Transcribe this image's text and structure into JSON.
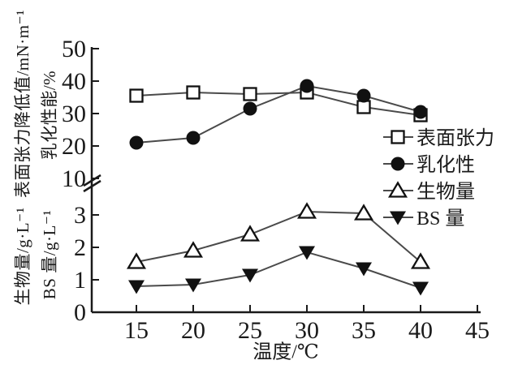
{
  "figure": {
    "xlabel": "温度/℃",
    "ylabel_top_outer": "表面张力降低值/mN·m⁻¹",
    "ylabel_top_inner": "乳化性能/%",
    "ylabel_bottom_outer": "生物量/g·L⁻¹",
    "ylabel_bottom_inner": "BS 量/g·L⁻¹"
  },
  "chart_data": {
    "type": "line",
    "x": [
      15,
      20,
      25,
      30,
      35,
      40
    ],
    "xlabel": "温度/℃",
    "xticks": [
      "15",
      "20",
      "25",
      "30",
      "35",
      "40",
      "45"
    ],
    "xtick_values": [
      15,
      20,
      25,
      30,
      35,
      40,
      45
    ],
    "xlim": [
      11,
      45
    ],
    "broken_y_axis": {
      "top": {
        "axis_label": "表面张力降低值/mN·m⁻¹ 乳化性能/%",
        "ticks": [
          "50",
          "40",
          "30",
          "20",
          "10"
        ],
        "tick_values": [
          50,
          40,
          30,
          20,
          10
        ],
        "range": [
          10,
          50
        ]
      },
      "bottom": {
        "axis_label": "生物量/g·L⁻¹ BS 量/g·L⁻¹",
        "ticks": [
          "3",
          "2",
          "1",
          "0"
        ],
        "tick_values": [
          3,
          2,
          1,
          0
        ],
        "range": [
          0,
          3.5
        ]
      },
      "break_symbol": "double-slash"
    },
    "series": [
      {
        "name": "表面张力",
        "axis": "top",
        "marker": "square-open",
        "values": [
          35.5,
          36.5,
          36,
          36.5,
          32,
          29.5
        ]
      },
      {
        "name": "乳化性",
        "axis": "top",
        "marker": "circle-filled",
        "values": [
          21,
          22.5,
          31.5,
          38.5,
          35.5,
          30.5
        ]
      },
      {
        "name": "生物量",
        "axis": "bottom",
        "marker": "triangle-open",
        "values": [
          1.55,
          1.9,
          2.4,
          3.1,
          3.05,
          1.55
        ]
      },
      {
        "name": "BS 量",
        "axis": "bottom",
        "marker": "triangle-down-filled",
        "values": [
          0.8,
          0.85,
          1.15,
          1.85,
          1.35,
          0.75
        ]
      }
    ],
    "legend_position": "right-inside",
    "grid": false,
    "colors": {
      "line": "#4a4a4a",
      "marker_fill": "#111111",
      "marker_open_fill": "#ffffff",
      "axis": "#1a1a1a",
      "text": "#1a1a1a",
      "background": "#ffffff"
    }
  }
}
